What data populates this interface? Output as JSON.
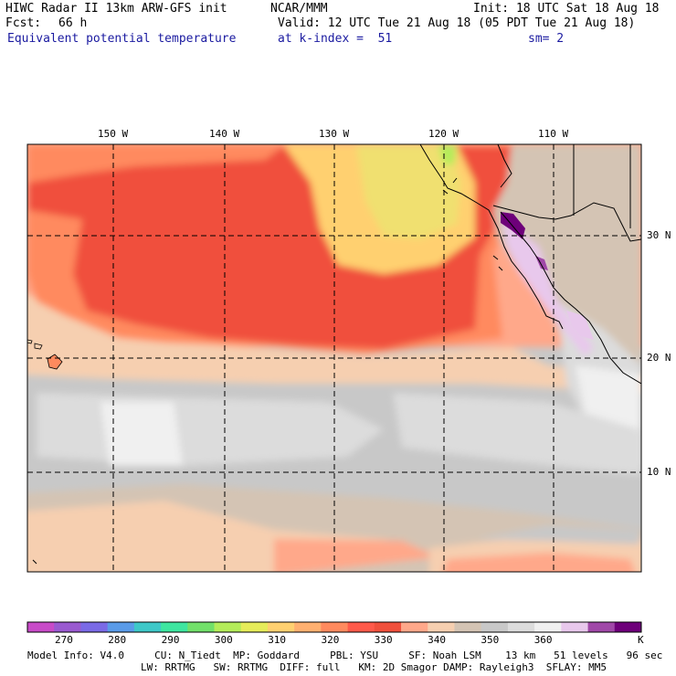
{
  "header": {
    "line1_left": "HIWC Radar II 13km ARW-GFS init",
    "line1_mid": "NCAR/MMM",
    "line1_right": "Init: 18 UTC Sat 18 Aug 18",
    "line2_left": "Fcst:",
    "line2_fcst": "66 h",
    "line2_right": "Valid: 12 UTC Tue 21 Aug 18 (05 PDT Tue 21 Aug 18)",
    "field_name": "Equivalent potential temperature",
    "level": "at k-index =  51",
    "smoothing": "sm= 2"
  },
  "map": {
    "lon_labels": [
      "150 W",
      "140 W",
      "130 W",
      "120 W",
      "110 W"
    ],
    "lat_labels": [
      "30 N",
      "20 N",
      "10 N"
    ]
  },
  "colorbar": {
    "unit": "K",
    "tick_labels": [
      "270",
      "280",
      "290",
      "300",
      "310",
      "320",
      "330",
      "340",
      "350",
      "360"
    ],
    "colors": [
      "#c84bc8",
      "#9a5ad0",
      "#7a6ae6",
      "#5a9be8",
      "#3ec8c8",
      "#3ee6a0",
      "#72e06a",
      "#b4ec5a",
      "#e6ec5a",
      "#ffd070",
      "#ffb070",
      "#ff8a5e",
      "#ff5a4a",
      "#f0503c",
      "#ffa88a",
      "#f6cfb0",
      "#d4c4b4",
      "#c8c8c8",
      "#dcdcdc",
      "#f0f0f0",
      "#e8c8ec",
      "#a048a8",
      "#6e007a"
    ]
  },
  "footer": {
    "line1": "Model Info: V4.0     CU: N_Tiedt  MP: Goddard     PBL: YSU     SF: Noah LSM    13 km   51 levels   96 sec",
    "line2": "LW: RRTMG   SW: RRTMG  DIFF: full   KM: 2D Smagor DAMP: Rayleigh3  SFLAY: MM5"
  }
}
